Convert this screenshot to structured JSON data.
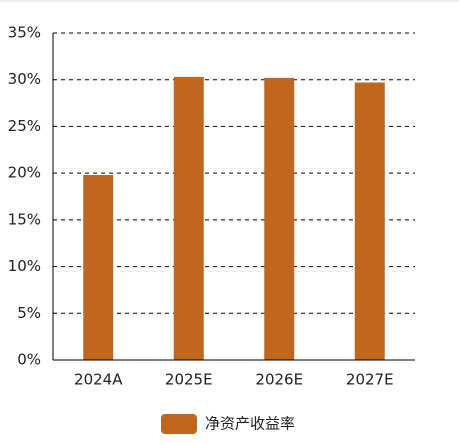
{
  "chart_data": {
    "type": "bar",
    "categories": [
      "2024A",
      "2025E",
      "2026E",
      "2027E"
    ],
    "series": [
      {
        "name": "净资产收益率",
        "color": "#bf671e",
        "values": [
          19.8,
          30.3,
          30.2,
          29.7
        ]
      }
    ],
    "ylim": [
      0,
      35
    ],
    "yticks": [
      {
        "value": 0,
        "label": "0%"
      },
      {
        "value": 5,
        "label": "5%"
      },
      {
        "value": 10,
        "label": "10%"
      },
      {
        "value": 15,
        "label": "15%"
      },
      {
        "value": 20,
        "label": "20%"
      },
      {
        "value": 25,
        "label": "25%"
      },
      {
        "value": 30,
        "label": "30%"
      },
      {
        "value": 35,
        "label": "35%"
      }
    ],
    "grid": true
  }
}
